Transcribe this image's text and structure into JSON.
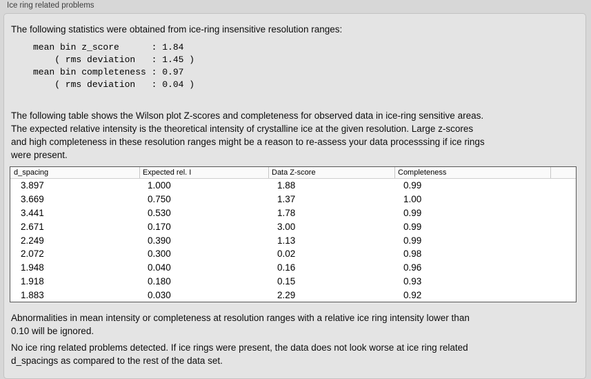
{
  "header": {
    "title": "Ice ring related problems"
  },
  "intro": "The following statistics were obtained from ice-ring insensitive resolution ranges:",
  "stats_block": "mean bin z_score      : 1.84\n    ( rms deviation   : 1.45 )\nmean bin completeness : 0.97\n    ( rms deviation   : 0.04 )",
  "table_intro": "The following table shows the Wilson plot Z-scores and completeness for observed data in ice-ring sensitive areas.\nThe expected relative intensity is the theoretical intensity of crystalline ice at the given resolution. Large z-scores\nand high completeness in these resolution ranges might be a reason to re-assess your data processsing if ice rings\nwere present.",
  "table": {
    "columns": [
      "d_spacing",
      "Expected rel. I",
      "Data Z-score",
      "Completeness"
    ],
    "rows": [
      [
        "3.897",
        "1.000",
        "1.88",
        "0.99"
      ],
      [
        "3.669",
        "0.750",
        "1.37",
        "1.00"
      ],
      [
        "3.441",
        "0.530",
        "1.78",
        "0.99"
      ],
      [
        "2.671",
        "0.170",
        "3.00",
        "0.99"
      ],
      [
        "2.249",
        "0.390",
        "1.13",
        "0.99"
      ],
      [
        "2.072",
        "0.300",
        "0.02",
        "0.98"
      ],
      [
        "1.948",
        "0.040",
        "0.16",
        "0.96"
      ],
      [
        "1.918",
        "0.180",
        "0.15",
        "0.93"
      ],
      [
        "1.883",
        "0.030",
        "2.29",
        "0.92"
      ]
    ]
  },
  "note_abnormalities": "Abnormalities in mean intensity or completeness at resolution ranges with a relative ice ring intensity lower than\n0.10 will be ignored.",
  "conclusion": "No ice ring related problems detected. If ice rings were present, the data does not look worse at ice ring related\nd_spacings as compared to the rest of the data set."
}
